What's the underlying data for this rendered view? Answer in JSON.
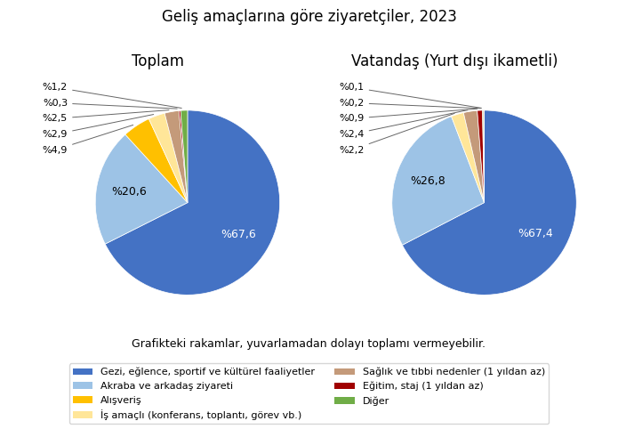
{
  "title": "Geliş amaçlarına göre ziyaretçiler, 2023",
  "annotations": [
    "Grafikteki rakamlar, yuvarlamadan dolayı toplamı vermeyebilir."
  ],
  "legend": "lower center",
  "chart_data": [
    {
      "type": "pie",
      "title": "Toplam",
      "categories": [
        "Gezi, eğlence, sportif ve kültürel faaliyetler",
        "Akraba ve arkadaş ziyareti",
        "Alışveriş",
        "İş amaçlı (konferans, toplantı, görev vb.)",
        "Sağlık ve tıbbi nedenler (1 yıldan az)",
        "Eğitim, staj (1 yıldan az)",
        "Diğer"
      ],
      "values": [
        67.6,
        20.6,
        4.9,
        2.9,
        2.5,
        0.3,
        1.2
      ],
      "value_labels": [
        "%67,6",
        "%20,6",
        "%4,9",
        "%2,9",
        "%2,5",
        "%0,3",
        "%1,2"
      ],
      "colors": [
        "#4472C4",
        "#9DC3E6",
        "#FFC000",
        "#FFE699",
        "#C49A7A",
        "#A00000",
        "#70AD47"
      ],
      "data_labels": true
    },
    {
      "type": "pie",
      "title": "Vatandaş (Yurt dışı ikametli)",
      "categories": [
        "Gezi, eğlence, sportif ve kültürel faaliyetler",
        "Akraba ve arkadaş ziyareti",
        "İş amaçlı (konferans, toplantı, görev vb.)",
        "Sağlık ve tıbbi nedenler (1 yıldan az)",
        "Eğitim, staj (1 yıldan az)",
        "Diğer",
        null
      ],
      "values": [
        67.4,
        26.8,
        2.2,
        2.4,
        0.9,
        0.2,
        0.1
      ],
      "value_labels": [
        "%67,4",
        "%26,8",
        "%2,2",
        "%2,4",
        "%0,9",
        "%0,2",
        "%0,1"
      ],
      "colors": [
        "#4472C4",
        "#9DC3E6",
        "#FFE699",
        "#C49A7A",
        "#A00000",
        "#70AD47",
        "#FF0000"
      ],
      "data_labels": true
    }
  ]
}
